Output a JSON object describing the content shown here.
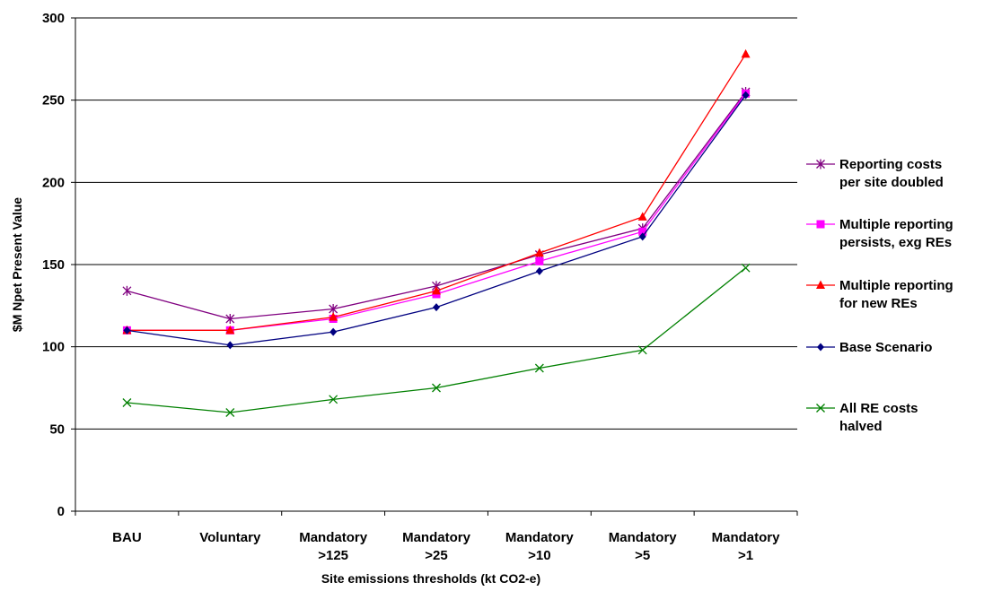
{
  "chart_data": {
    "type": "line",
    "categories": [
      [
        "BAU"
      ],
      [
        "Voluntary"
      ],
      [
        "Mandatory",
        ">125"
      ],
      [
        "Mandatory",
        ">25"
      ],
      [
        "Mandatory",
        ">10"
      ],
      [
        "Mandatory",
        ">5"
      ],
      [
        "Mandatory",
        ">1"
      ]
    ],
    "xlabel": "Site emissions thresholds (kt CO2-e)",
    "ylabel": "$M Npet Present Value",
    "ylim": [
      0,
      300
    ],
    "yticks": [
      0,
      50,
      100,
      150,
      200,
      250,
      300
    ],
    "grid": true,
    "legend_position": "right",
    "series": [
      {
        "name": "Reporting costs per site doubled",
        "legend_lines": [
          "Reporting costs",
          "per site doubled"
        ],
        "color": "#800080",
        "marker": "asterisk",
        "values": [
          134,
          117,
          123,
          137,
          156,
          172,
          255
        ]
      },
      {
        "name": "Multiple reporting persists, exg REs",
        "legend_lines": [
          "Multiple reporting",
          "persists, exg REs"
        ],
        "color": "#ff00ff",
        "marker": "square",
        "values": [
          110,
          110,
          117,
          132,
          152,
          170,
          254
        ]
      },
      {
        "name": "Multiple reporting for new REs",
        "legend_lines": [
          "Multiple reporting",
          "for new REs"
        ],
        "color": "#ff0000",
        "marker": "triangle",
        "values": [
          110,
          110,
          118,
          134,
          157,
          179,
          278
        ]
      },
      {
        "name": "Base Scenario",
        "legend_lines": [
          "Base Scenario"
        ],
        "color": "#000080",
        "marker": "diamond",
        "values": [
          110,
          101,
          109,
          124,
          146,
          167,
          253
        ]
      },
      {
        "name": "All RE costs halved",
        "legend_lines": [
          "All RE costs",
          "halved"
        ],
        "color": "#008000",
        "marker": "x",
        "values": [
          66,
          60,
          68,
          75,
          87,
          98,
          148
        ]
      }
    ]
  }
}
